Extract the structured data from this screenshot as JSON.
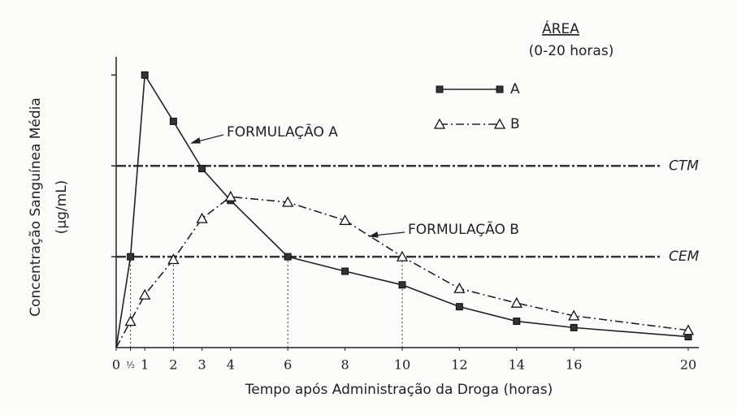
{
  "chart_data": {
    "type": "line",
    "x_label": "Tempo após Administração da Droga (horas)",
    "y_label": [
      "Concentração Sanguínea Média",
      "(μg/mL)"
    ],
    "x": [
      0,
      0.5,
      1,
      2,
      3,
      4,
      6,
      8,
      10,
      12,
      14,
      16,
      20
    ],
    "series": [
      {
        "name": "A",
        "color": "#222222",
        "marker": "square",
        "dash": "solid",
        "values": [
          0,
          1.0,
          3.0,
          2.49,
          1.97,
          1.62,
          1.0,
          0.84,
          0.69,
          0.45,
          0.29,
          0.22,
          0.12
        ]
      },
      {
        "name": "B",
        "color": "#222222",
        "marker": "triangle",
        "dash": "dashdot",
        "values": [
          0,
          0.29,
          0.58,
          0.97,
          1.42,
          1.66,
          1.6,
          1.4,
          1.0,
          0.65,
          0.49,
          0.35,
          0.19
        ]
      }
    ],
    "xlim": [
      0,
      20
    ],
    "xticks": [
      0,
      {
        "value": 0.5,
        "label": "½"
      },
      1,
      2,
      3,
      4,
      6,
      8,
      10,
      12,
      14,
      16,
      20
    ],
    "ylim": [
      0,
      3.2
    ],
    "yticks": [
      1,
      2,
      3
    ],
    "reference_lines": [
      {
        "label": "CTM",
        "value": 2
      },
      {
        "label": "CEM",
        "value": 1
      }
    ],
    "drop_lines": [
      0.5,
      2,
      6,
      10
    ],
    "legend_title": [
      "ÁREA",
      "(0-20 horas)"
    ],
    "annotations": [
      "FORMULAÇÃO A",
      "FORMULAÇÃO B"
    ]
  }
}
